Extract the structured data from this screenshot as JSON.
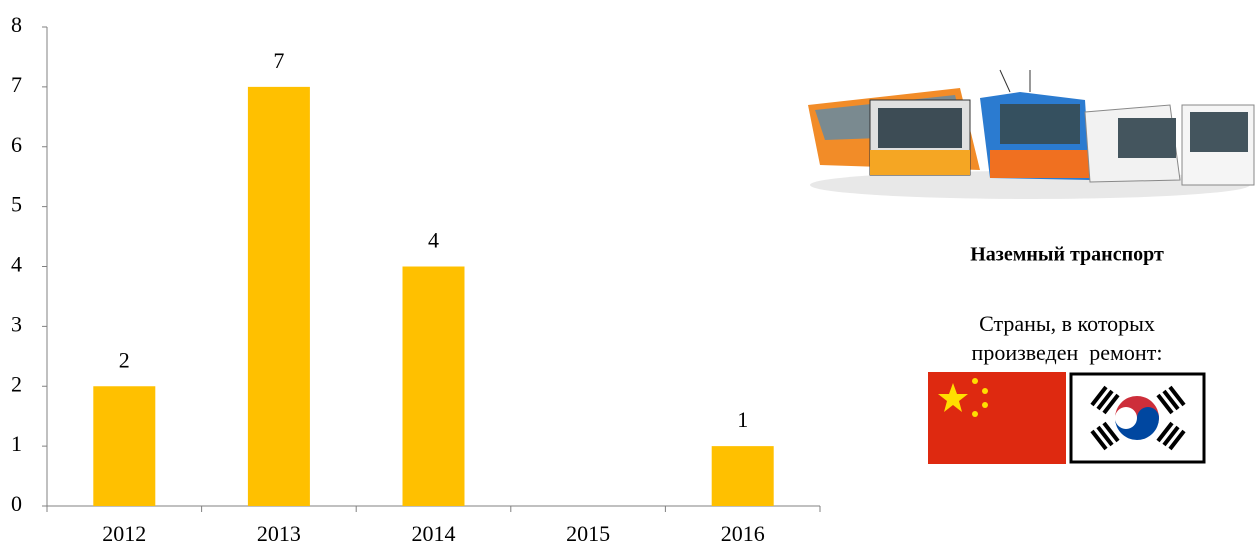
{
  "chart_data": {
    "type": "bar",
    "categories": [
      "2012",
      "2013",
      "2014",
      "2015",
      "2016"
    ],
    "values": [
      2,
      7,
      4,
      null,
      1
    ],
    "color": "#ffc000",
    "ylim": [
      0,
      8
    ],
    "yticks": [
      0,
      1,
      2,
      3,
      4,
      5,
      6,
      7,
      8
    ],
    "grid": false,
    "side_title": "Наземный транспорт",
    "side_text": [
      "Страны, в которых",
      "произведен  ремонт:"
    ]
  }
}
